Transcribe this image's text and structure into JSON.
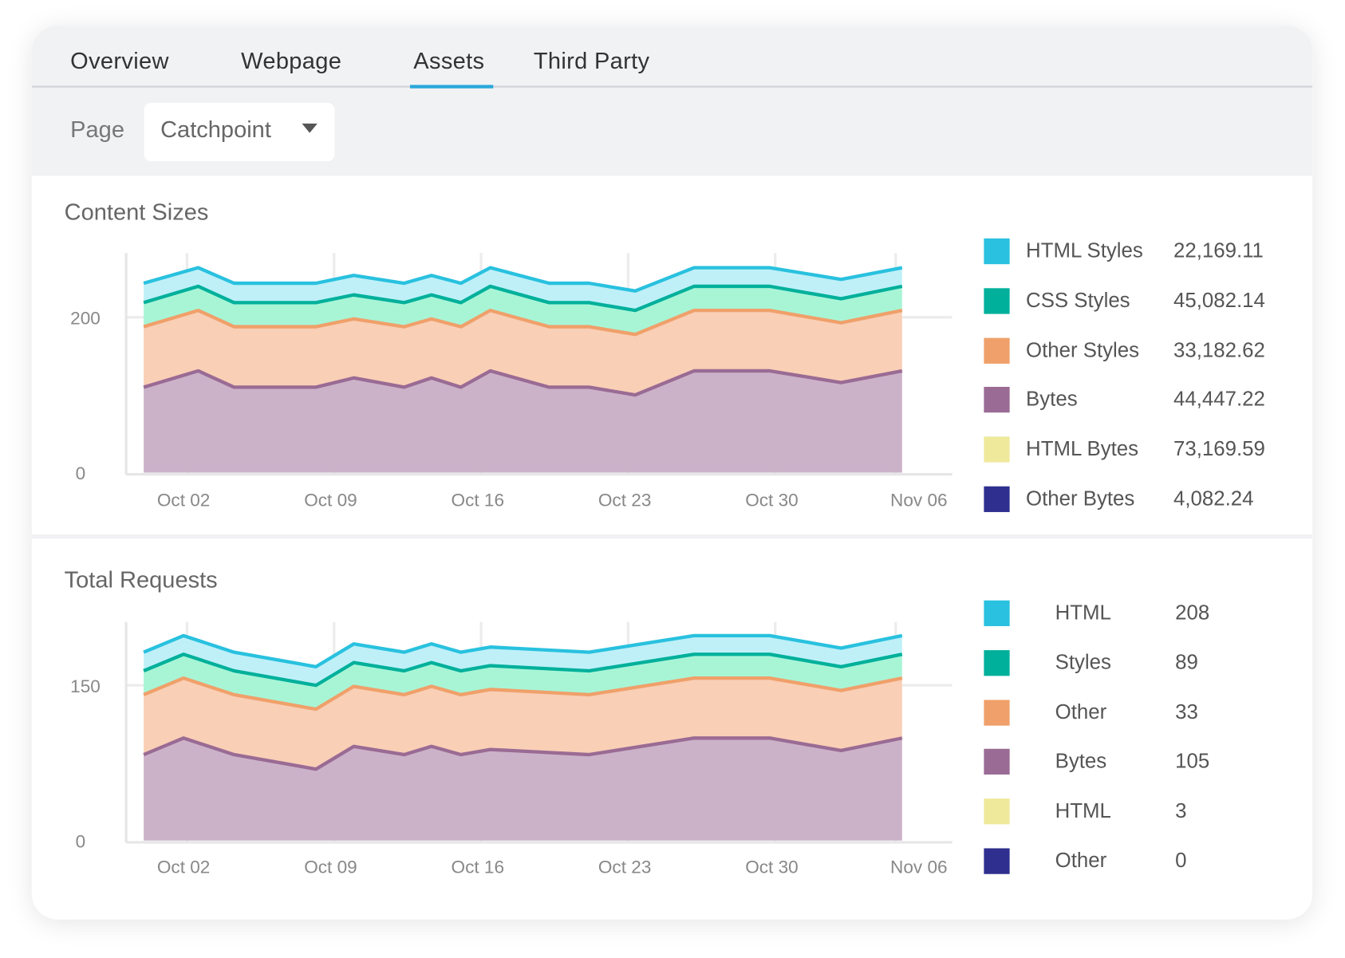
{
  "tabs": [
    {
      "label": "Overview"
    },
    {
      "label": "Webpage"
    },
    {
      "label": "Assets",
      "active": true
    },
    {
      "label": "Third Party"
    }
  ],
  "filter": {
    "label": "Page",
    "selected": "Catchpoint"
  },
  "colors": {
    "accent": "#2aa8dc"
  },
  "chart_data": [
    {
      "type": "area",
      "stacked": true,
      "title": "Content Sizes",
      "x_unit": "days since Sep 30",
      "x": [
        0.1,
        2.7,
        4.4,
        8.3,
        10.1,
        12.5,
        13.8,
        15.2,
        16.6,
        19.4,
        21.3,
        23.5,
        26.3,
        29.9,
        33.3,
        36.2
      ],
      "xticks": [
        {
          "day": 2,
          "label": "Oct 02"
        },
        {
          "day": 9,
          "label": "Oct 09"
        },
        {
          "day": 16,
          "label": "Oct 16"
        },
        {
          "day": 23,
          "label": "Oct 23"
        },
        {
          "day": 30,
          "label": "Oct 30"
        },
        {
          "day": 37,
          "label": "Nov 06"
        }
      ],
      "yticks": [
        {
          "value": 0,
          "label": "0"
        },
        {
          "value": 200,
          "label": "200"
        }
      ],
      "ylim": [
        0,
        285
      ],
      "grid": true,
      "legend_position": "right",
      "series": [
        {
          "name": "Bytes",
          "line": "#9a6b94",
          "fill": "#cbb2c9",
          "values": [
            110,
            131,
            110,
            110,
            122,
            110,
            122,
            110,
            131,
            110,
            110,
            100,
            131,
            131,
            116,
            131
          ]
        },
        {
          "name": "Other Styles",
          "line": "#f0a06a",
          "fill": "#f9cfb6",
          "values": [
            78,
            78,
            78,
            78,
            76,
            78,
            76,
            78,
            78,
            78,
            78,
            78,
            78,
            78,
            77,
            78
          ]
        },
        {
          "name": "CSS Styles",
          "line": "#00b09b",
          "fill": "#a8f5d6",
          "values": [
            31,
            31,
            31,
            31,
            31,
            31,
            31,
            31,
            31,
            31,
            31,
            31,
            31,
            31,
            31,
            31
          ]
        },
        {
          "name": "HTML Styles",
          "line": "#29c1df",
          "fill": "#bff0f8",
          "values": [
            25,
            24,
            25,
            25,
            25,
            25,
            25,
            25,
            24,
            25,
            25,
            25,
            24,
            24,
            25,
            24
          ]
        }
      ],
      "legend": [
        {
          "label": "HTML Styles",
          "value": "22,169.11",
          "color": "#29c1df"
        },
        {
          "label": "CSS Styles",
          "value": "45,082.14",
          "color": "#00b09b"
        },
        {
          "label": "Other Styles",
          "value": "33,182.62",
          "color": "#f0a06a"
        },
        {
          "label": "Bytes",
          "value": "44,447.22",
          "color": "#9a6b94"
        },
        {
          "label": "HTML Bytes",
          "value": "73,169.59",
          "color": "#efe99c"
        },
        {
          "label": "Other Bytes",
          "value": "4,082.24",
          "color": "#2f2f8f"
        }
      ]
    },
    {
      "type": "area",
      "stacked": true,
      "title": "Total Requests",
      "x_unit": "days since Sep 30",
      "x": [
        0.1,
        2.0,
        4.4,
        8.3,
        10.1,
        12.5,
        13.8,
        15.2,
        16.6,
        21.3,
        26.3,
        29.9,
        33.3,
        36.2
      ],
      "xticks": [
        {
          "day": 2,
          "label": "Oct 02"
        },
        {
          "day": 9,
          "label": "Oct 09"
        },
        {
          "day": 16,
          "label": "Oct 16"
        },
        {
          "day": 23,
          "label": "Oct 23"
        },
        {
          "day": 30,
          "label": "Oct 30"
        },
        {
          "day": 37,
          "label": "Nov 06"
        }
      ],
      "yticks": [
        {
          "value": 0,
          "label": "0"
        },
        {
          "value": 150,
          "label": "150"
        }
      ],
      "ylim": [
        0,
        214
      ],
      "grid": true,
      "legend_position": "right",
      "series": [
        {
          "name": "Bytes",
          "line": "#9a6b94",
          "fill": "#cbb2c9",
          "values": [
            83,
            99,
            83,
            69,
            91,
            83,
            91,
            83,
            88,
            83,
            99,
            99,
            87,
            99
          ]
        },
        {
          "name": "Other",
          "line": "#f0a06a",
          "fill": "#f9cfb6",
          "values": [
            58,
            58,
            58,
            58,
            58,
            58,
            58,
            58,
            58,
            58,
            58,
            58,
            58,
            58
          ]
        },
        {
          "name": "Styles",
          "line": "#00b09b",
          "fill": "#a8f5d6",
          "values": [
            23,
            23,
            23,
            23,
            23,
            23,
            23,
            23,
            23,
            23,
            23,
            23,
            23,
            23
          ]
        },
        {
          "name": "HTML",
          "line": "#29c1df",
          "fill": "#bff0f8",
          "values": [
            18,
            18,
            18,
            18,
            18,
            18,
            18,
            18,
            18,
            18,
            18,
            18,
            18,
            18
          ]
        }
      ],
      "legend": [
        {
          "label": "HTML",
          "value": "208",
          "color": "#29c1df"
        },
        {
          "label": "Styles",
          "value": "89",
          "color": "#00b09b"
        },
        {
          "label": "Other",
          "value": "33",
          "color": "#f0a06a"
        },
        {
          "label": "Bytes",
          "value": "105",
          "color": "#9a6b94"
        },
        {
          "label": "HTML",
          "value": "3",
          "color": "#efe99c"
        },
        {
          "label": "Other",
          "value": "0",
          "color": "#2f2f8f"
        }
      ]
    }
  ]
}
